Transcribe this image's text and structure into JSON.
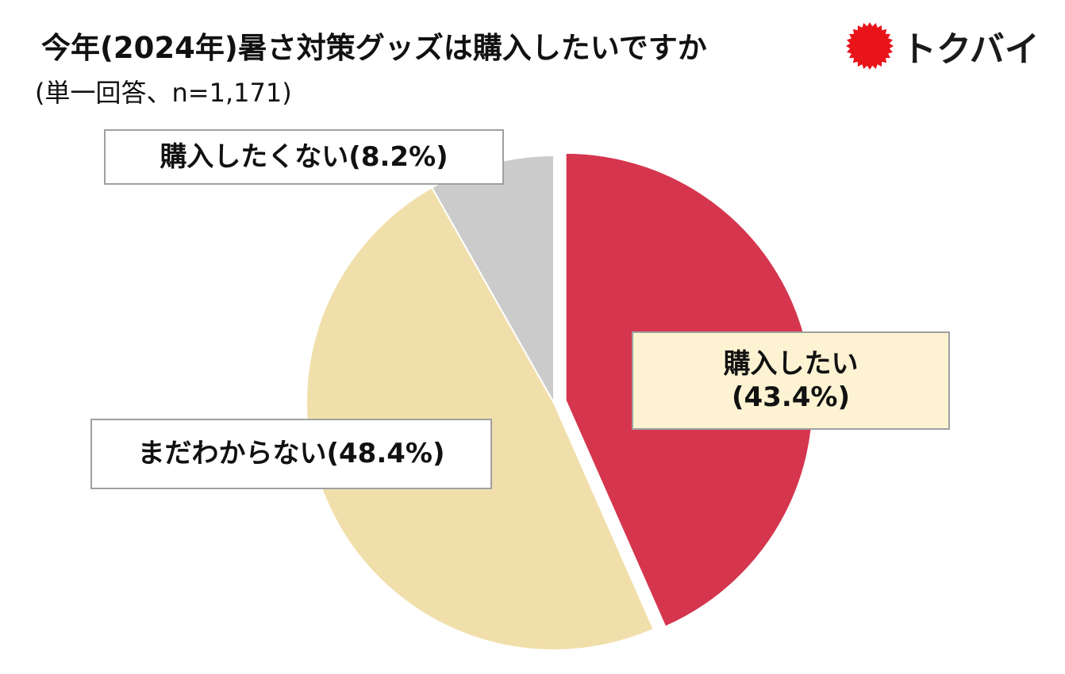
{
  "header": {
    "title": "今年(2024年)暑さ対策グッズは購入したいですか",
    "subtitle": "(単一回答、n=1,171)"
  },
  "logo": {
    "text": "トクバイ",
    "mark_color": "#e8141a"
  },
  "chart_data": {
    "type": "pie",
    "title": "今年(2024年)暑さ対策グッズは購入したいですか",
    "subtitle": "(単一回答、n=1,171)",
    "slices": [
      {
        "label": "購入したい",
        "value": 43.4,
        "percent_label": "(43.4%)",
        "color": "#d5364e",
        "exploded": true
      },
      {
        "label": "まだわからない",
        "value": 48.4,
        "percent_label": "(48.4%)",
        "color": "#f1dfab",
        "exploded": false
      },
      {
        "label": "購入したくない",
        "value": 8.2,
        "percent_label": "(8.2%)",
        "color": "#cbcbcb",
        "exploded": false
      }
    ],
    "start": "12 o'clock",
    "direction": "clockwise"
  },
  "labels": {
    "want_line1": "購入したい",
    "want_line2": "(43.4%)",
    "undecided": "まだわからない(48.4%)",
    "dont_want": "購入したくない(8.2%)"
  }
}
